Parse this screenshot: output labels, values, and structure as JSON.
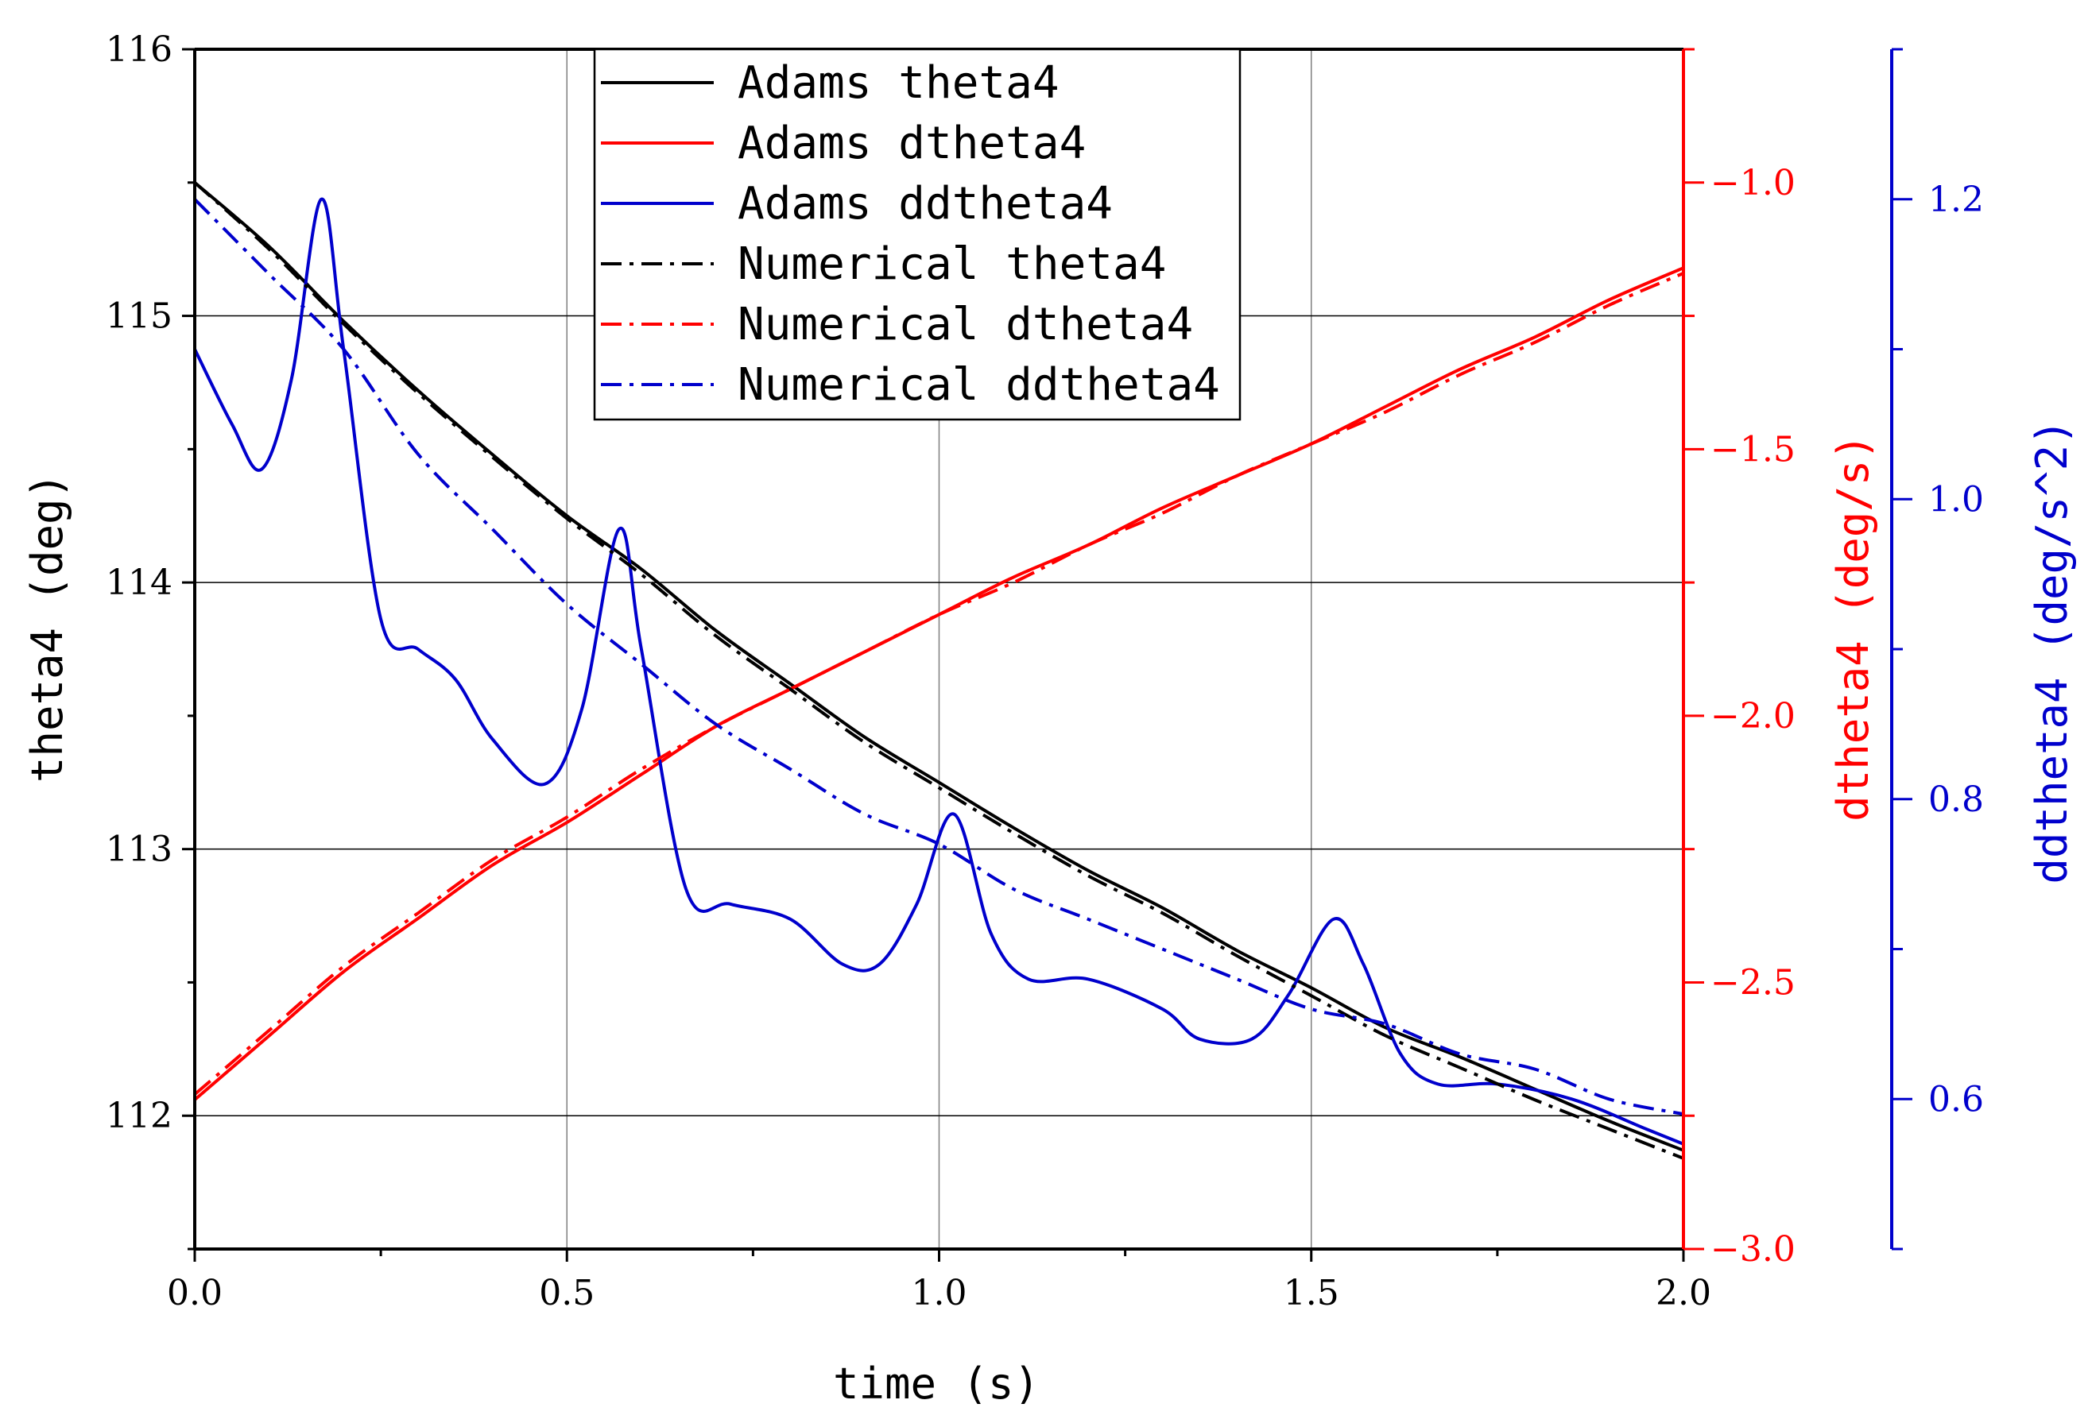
{
  "chart_data": {
    "type": "line",
    "xlabel": "time (s)",
    "ylabel": "theta4 (deg)",
    "y2label": "dtheta4 (deg/s)",
    "y3label": "ddtheta4 (deg/s^2)",
    "xlim": [
      0,
      2
    ],
    "ylim": [
      111.5,
      116
    ],
    "y2lim": [
      -3.0,
      -0.75
    ],
    "y3lim": [
      0.5,
      1.3
    ],
    "xticks": [
      "0.0",
      "0.5",
      "1.0",
      "1.5",
      "2.0"
    ],
    "yticks": [
      "112",
      "113",
      "114",
      "115",
      "116"
    ],
    "y2ticks": [
      "-1.0",
      "-1.5",
      "-2.0",
      "-2.5",
      "-3.0"
    ],
    "y3ticks": [
      "0.6",
      "0.8",
      "1.0",
      "1.2"
    ],
    "grid": "horizontal and vertical at major ticks",
    "legend_position": "top-center",
    "colors": {
      "theta": "#000000",
      "dtheta": "#ff0000",
      "ddtheta": "#0000cc"
    },
    "series": [
      {
        "name": "Adams theta4",
        "axis": "y1",
        "style": "solid",
        "color": "#000000",
        "x": [
          0,
          0.1,
          0.2,
          0.3,
          0.4,
          0.5,
          0.6,
          0.7,
          0.8,
          0.9,
          1.0,
          1.1,
          1.2,
          1.3,
          1.4,
          1.5,
          1.6,
          1.7,
          1.8,
          1.9,
          2.0
        ],
        "y": [
          115.5,
          115.26,
          114.98,
          114.72,
          114.48,
          114.25,
          114.05,
          113.82,
          113.62,
          113.42,
          113.25,
          113.08,
          112.92,
          112.78,
          112.62,
          112.48,
          112.33,
          112.22,
          112.1,
          111.98,
          111.87
        ]
      },
      {
        "name": "Adams dtheta4",
        "axis": "y2",
        "style": "solid",
        "color": "#ff0000",
        "x": [
          0,
          0.1,
          0.2,
          0.3,
          0.4,
          0.5,
          0.6,
          0.7,
          0.8,
          0.9,
          1.0,
          1.1,
          1.2,
          1.3,
          1.4,
          1.5,
          1.6,
          1.7,
          1.8,
          1.9,
          2.0
        ],
        "y": [
          -2.72,
          -2.6,
          -2.48,
          -2.38,
          -2.28,
          -2.2,
          -2.11,
          -2.02,
          -1.95,
          -1.88,
          -1.81,
          -1.74,
          -1.68,
          -1.61,
          -1.55,
          -1.49,
          -1.42,
          -1.35,
          -1.29,
          -1.22,
          -1.16
        ]
      },
      {
        "name": "Adams ddtheta4",
        "axis": "y3",
        "style": "solid",
        "color": "#0000cc",
        "x": [
          0,
          0.05,
          0.09,
          0.13,
          0.17,
          0.2,
          0.25,
          0.3,
          0.35,
          0.4,
          0.47,
          0.52,
          0.57,
          0.6,
          0.66,
          0.72,
          0.8,
          0.87,
          0.92,
          0.97,
          1.02,
          1.07,
          1.12,
          1.2,
          1.3,
          1.35,
          1.42,
          1.47,
          1.53,
          1.57,
          1.62,
          1.67,
          1.75,
          1.85,
          1.95,
          2.0
        ],
        "y": [
          1.1,
          1.05,
          1.02,
          1.08,
          1.2,
          1.1,
          0.92,
          0.9,
          0.88,
          0.84,
          0.81,
          0.86,
          0.98,
          0.9,
          0.74,
          0.73,
          0.72,
          0.69,
          0.69,
          0.73,
          0.79,
          0.71,
          0.68,
          0.68,
          0.66,
          0.64,
          0.64,
          0.67,
          0.72,
          0.69,
          0.63,
          0.61,
          0.61,
          0.6,
          0.58,
          0.57
        ]
      },
      {
        "name": "Numerical theta4",
        "axis": "y1",
        "style": "dashdot",
        "color": "#000000",
        "x": [
          0,
          0.1,
          0.2,
          0.3,
          0.4,
          0.5,
          0.6,
          0.7,
          0.8,
          0.9,
          1.0,
          1.1,
          1.2,
          1.3,
          1.4,
          1.5,
          1.6,
          1.7,
          1.8,
          1.9,
          2.0
        ],
        "y": [
          115.5,
          115.25,
          114.97,
          114.71,
          114.47,
          114.24,
          114.03,
          113.8,
          113.6,
          113.4,
          113.23,
          113.06,
          112.9,
          112.76,
          112.6,
          112.45,
          112.3,
          112.18,
          112.06,
          111.95,
          111.84
        ]
      },
      {
        "name": "Numerical dtheta4",
        "axis": "y2",
        "style": "dashdot",
        "color": "#ff0000",
        "x": [
          0,
          0.1,
          0.2,
          0.3,
          0.4,
          0.5,
          0.6,
          0.7,
          0.8,
          0.9,
          1.0,
          1.1,
          1.2,
          1.3,
          1.4,
          1.5,
          1.6,
          1.7,
          1.8,
          1.9,
          2.0
        ],
        "y": [
          -2.71,
          -2.59,
          -2.47,
          -2.37,
          -2.27,
          -2.19,
          -2.1,
          -2.02,
          -1.95,
          -1.88,
          -1.81,
          -1.75,
          -1.68,
          -1.62,
          -1.55,
          -1.49,
          -1.43,
          -1.36,
          -1.3,
          -1.23,
          -1.17
        ]
      },
      {
        "name": "Numerical ddtheta4",
        "axis": "y3",
        "style": "dashdot",
        "color": "#0000cc",
        "x": [
          0,
          0.1,
          0.2,
          0.3,
          0.4,
          0.5,
          0.6,
          0.7,
          0.8,
          0.9,
          1.0,
          1.1,
          1.2,
          1.3,
          1.4,
          1.5,
          1.6,
          1.7,
          1.8,
          1.9,
          2.0
        ],
        "y": [
          1.2,
          1.15,
          1.1,
          1.03,
          0.98,
          0.93,
          0.89,
          0.85,
          0.82,
          0.79,
          0.77,
          0.74,
          0.72,
          0.7,
          0.68,
          0.66,
          0.65,
          0.63,
          0.62,
          0.6,
          0.59
        ]
      }
    ]
  }
}
